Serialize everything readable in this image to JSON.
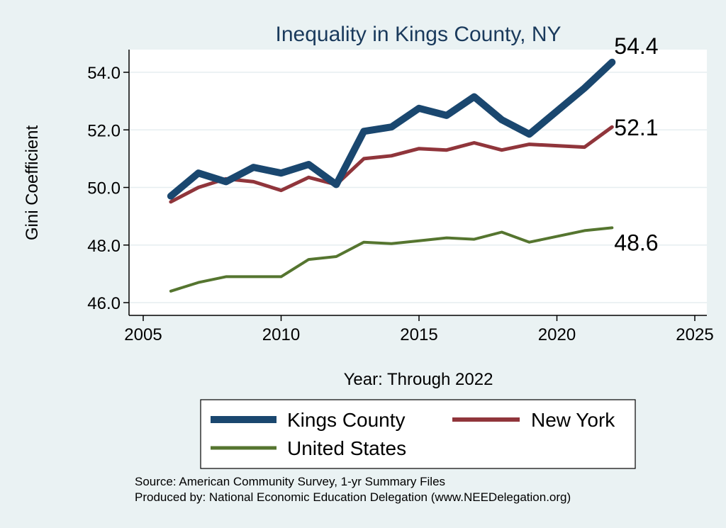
{
  "chart_data": {
    "type": "line",
    "title": "Inequality in Kings County, NY",
    "xlabel": "Year: Through 2022",
    "ylabel": "Gini Coefficient",
    "xlim": [
      2005,
      2025
    ],
    "ylim": [
      45.6,
      54.8
    ],
    "x_ticks": [
      2005,
      2010,
      2015,
      2020,
      2025
    ],
    "y_ticks": [
      46.0,
      48.0,
      50.0,
      52.0,
      54.0
    ],
    "grid": true,
    "series": [
      {
        "name": "Kings County",
        "color": "#1a476f",
        "x": [
          2006,
          2007,
          2008,
          2009,
          2010,
          2011,
          2012,
          2013,
          2014,
          2015,
          2016,
          2017,
          2018,
          2019,
          2020,
          2021,
          2022
        ],
        "values": [
          49.7,
          50.5,
          50.2,
          50.7,
          50.5,
          50.8,
          50.1,
          51.95,
          52.1,
          52.75,
          52.5,
          53.15,
          52.35,
          51.85,
          52.65,
          53.45,
          54.35
        ],
        "end_label": "54.4"
      },
      {
        "name": "New York",
        "color": "#90353b",
        "x": [
          2006,
          2007,
          2008,
          2009,
          2010,
          2011,
          2012,
          2013,
          2014,
          2015,
          2016,
          2017,
          2018,
          2019,
          2020,
          2021,
          2022
        ],
        "values": [
          49.5,
          50.0,
          50.3,
          50.2,
          49.9,
          50.35,
          50.1,
          51.0,
          51.1,
          51.35,
          51.3,
          51.55,
          51.3,
          51.5,
          51.45,
          51.4,
          52.1
        ],
        "end_label": "52.1"
      },
      {
        "name": "United States",
        "color": "#55752f",
        "x": [
          2006,
          2007,
          2008,
          2009,
          2010,
          2011,
          2012,
          2013,
          2014,
          2015,
          2016,
          2017,
          2018,
          2019,
          2020,
          2021,
          2022
        ],
        "values": [
          46.4,
          46.7,
          46.9,
          46.9,
          46.9,
          47.5,
          47.6,
          48.1,
          48.05,
          48.15,
          48.25,
          48.2,
          48.45,
          48.1,
          48.3,
          48.5,
          48.6
        ],
        "end_label": "48.6"
      }
    ],
    "legend": {
      "placement": "bottom",
      "entries": [
        "Kings County",
        "New York",
        "United States"
      ]
    },
    "notes": [
      "Source: American Community Survey, 1-yr Summary Files",
      "Produced by: National Economic Education Delegation (www.NEEDelegation.org)"
    ]
  }
}
